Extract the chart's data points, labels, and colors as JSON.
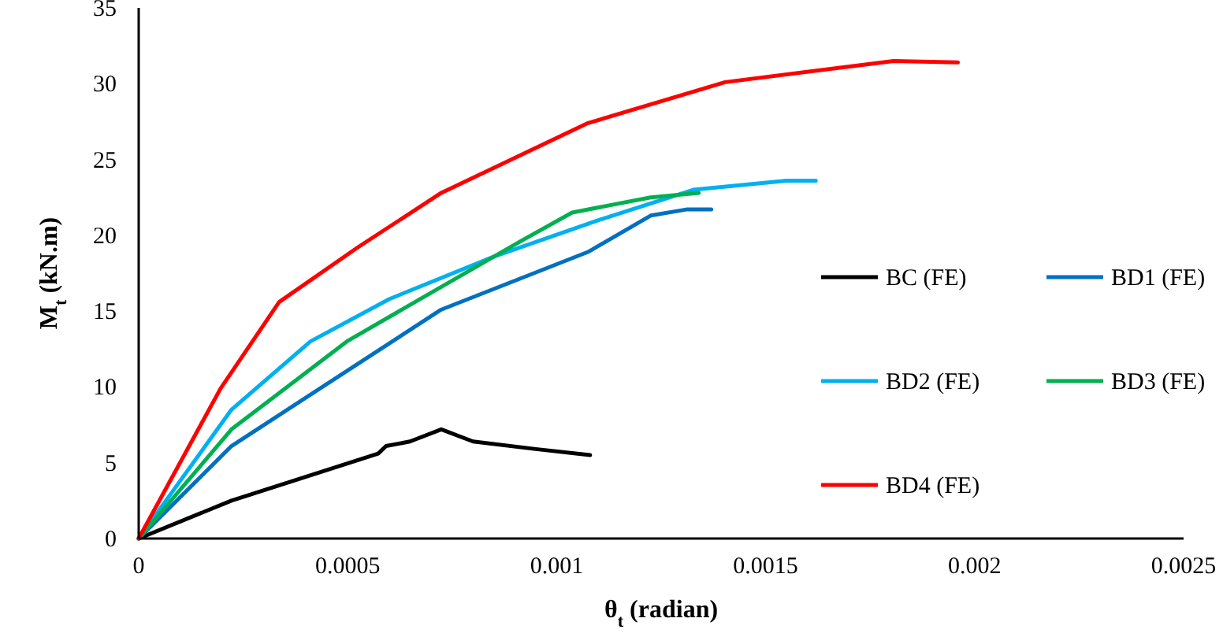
{
  "chart_data": {
    "type": "line",
    "xlabel": "θ$_{t}$ (radian)",
    "ylabel": "M$_{t}$ (kN.m)",
    "xlim": [
      0,
      0.0025
    ],
    "xticks": [
      0,
      0.0005,
      0.001,
      0.0015,
      0.002,
      0.0025
    ],
    "ylim": [
      0,
      35
    ],
    "yticks": [
      0,
      5,
      10,
      15,
      20,
      25,
      30,
      35
    ],
    "grid": false,
    "legend": "right",
    "marker": "none",
    "line_style": "solid",
    "series": [
      {
        "name": "BC (FE)",
        "color": "#000000",
        "x": [
          0,
          0.000222,
          0.000573,
          0.000592,
          0.000649,
          0.000724,
          0.0008,
          0.00095,
          0.00108
        ],
        "values": [
          0,
          2.5,
          5.6,
          6.1,
          6.4,
          7.2,
          6.4,
          5.9,
          5.5
        ]
      },
      {
        "name": "BD1 (FE)",
        "color": "#0070c0",
        "x": [
          0,
          0.000222,
          0.000724,
          0.001075,
          0.001225,
          0.00131,
          0.00137
        ],
        "values": [
          0,
          6.1,
          15.1,
          18.9,
          21.3,
          21.7,
          21.7
        ]
      },
      {
        "name": "BD2 (FE)",
        "color": "#00b0f0",
        "x": [
          0,
          0.000222,
          0.000411,
          0.0006,
          0.00085,
          0.0011,
          0.001327,
          0.00155,
          0.00162
        ],
        "values": [
          0,
          8.5,
          13,
          15.8,
          18.6,
          21,
          23,
          23.6,
          23.6
        ]
      },
      {
        "name": "BD3 (FE)",
        "color": "#00b050",
        "x": [
          0,
          0.000222,
          0.000498,
          0.000724,
          0.000913,
          0.001037,
          0.001225,
          0.00134
        ],
        "values": [
          0,
          7.2,
          13,
          16.6,
          19.6,
          21.5,
          22.5,
          22.8
        ]
      },
      {
        "name": "BD4 (FE)",
        "color": "#ff0000",
        "x": [
          0,
          0.000196,
          0.000336,
          0.000524,
          0.000724,
          0.001075,
          0.001403,
          0.001806,
          0.00196
        ],
        "values": [
          0,
          9.9,
          15.6,
          19.2,
          22.8,
          27.4,
          30.1,
          31.5,
          31.4
        ]
      }
    ]
  }
}
